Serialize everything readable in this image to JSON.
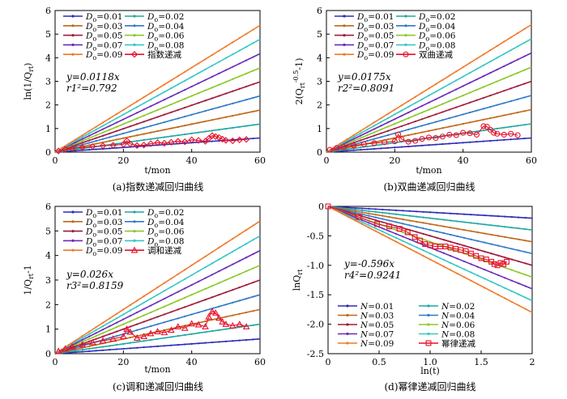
{
  "chart_data": [
    {
      "type": "line",
      "caption": "(a)指数递减回归曲线",
      "xlabel": "t/mon",
      "ylabel": "ln(1/Q_rt)",
      "xlim": [
        0,
        60
      ],
      "ylim": [
        0,
        6
      ],
      "xticks": [
        "0",
        "20",
        "40",
        "60"
      ],
      "yticks": [
        "0",
        "1",
        "2",
        "3",
        "4",
        "5",
        "6"
      ],
      "equation": "y=0.0118x",
      "r2_label": "r1²=0.792",
      "series": [
        {
          "name": "Do=0.01",
          "x": [
            0,
            60
          ],
          "y": [
            0,
            0.6
          ],
          "color": "#2b2bb8"
        },
        {
          "name": "Do=0.02",
          "x": [
            0,
            60
          ],
          "y": [
            0,
            1.19
          ],
          "color": "#1fa7a2"
        },
        {
          "name": "Do=0.03",
          "x": [
            0,
            60
          ],
          "y": [
            0,
            1.78
          ],
          "color": "#c06818"
        },
        {
          "name": "Do=0.04",
          "x": [
            0,
            60
          ],
          "y": [
            0,
            2.38
          ],
          "color": "#2f78c9"
        },
        {
          "name": "Do=0.05",
          "x": [
            0,
            60
          ],
          "y": [
            0,
            2.98
          ],
          "color": "#a01a3c"
        },
        {
          "name": "Do=0.06",
          "x": [
            0,
            60
          ],
          "y": [
            0,
            3.57
          ],
          "color": "#8bc82a"
        },
        {
          "name": "Do=0.07",
          "x": [
            0,
            60
          ],
          "y": [
            0,
            4.17
          ],
          "color": "#6a2cb8"
        },
        {
          "name": "Do=0.08",
          "x": [
            0,
            60
          ],
          "y": [
            0,
            4.78
          ],
          "color": "#38c6c6"
        },
        {
          "name": "Do=0.09",
          "x": [
            0,
            60
          ],
          "y": [
            0,
            5.37
          ],
          "color": "#f07a2a"
        },
        {
          "name": "指数递减",
          "marker": "diamond",
          "color": "#e8102a",
          "x": [
            1,
            3,
            5,
            8,
            11,
            14,
            17,
            20,
            21,
            22,
            24,
            26,
            28,
            30,
            32,
            34,
            36,
            38,
            40,
            42,
            44,
            45,
            46,
            47,
            48,
            49,
            50,
            52,
            54,
            56
          ],
          "y": [
            0.05,
            0.12,
            0.16,
            0.2,
            0.24,
            0.27,
            0.29,
            0.33,
            0.48,
            0.35,
            0.28,
            0.3,
            0.36,
            0.4,
            0.38,
            0.42,
            0.46,
            0.44,
            0.52,
            0.5,
            0.46,
            0.58,
            0.7,
            0.66,
            0.62,
            0.55,
            0.5,
            0.48,
            0.52,
            0.54
          ]
        }
      ]
    },
    {
      "type": "line",
      "caption": "(b)双曲递减回归曲线",
      "xlabel": "t/mon",
      "ylabel": "2(Q_rt^-0.5-1)",
      "xlim": [
        0,
        60
      ],
      "ylim": [
        0,
        6
      ],
      "xticks": [
        "0",
        "20",
        "40",
        "60"
      ],
      "yticks": [
        "0",
        "1",
        "2",
        "3",
        "4",
        "5",
        "6"
      ],
      "equation": "y=0.0175x",
      "r2_label": "r2²=0.8091",
      "series": [
        {
          "name": "Do=0.01",
          "x": [
            0,
            60
          ],
          "y": [
            0,
            0.6
          ],
          "color": "#2b2bb8"
        },
        {
          "name": "Do=0.02",
          "x": [
            0,
            60
          ],
          "y": [
            0,
            1.2
          ],
          "color": "#1fa7a2"
        },
        {
          "name": "Do=0.03",
          "x": [
            0,
            60
          ],
          "y": [
            0,
            1.8
          ],
          "color": "#c06818"
        },
        {
          "name": "Do=0.04",
          "x": [
            0,
            60
          ],
          "y": [
            0,
            2.4
          ],
          "color": "#2f78c9"
        },
        {
          "name": "Do=0.05",
          "x": [
            0,
            60
          ],
          "y": [
            0,
            3.0
          ],
          "color": "#a01a3c"
        },
        {
          "name": "Do=0.06",
          "x": [
            0,
            60
          ],
          "y": [
            0,
            3.6
          ],
          "color": "#8bc82a"
        },
        {
          "name": "Do=0.07",
          "x": [
            0,
            60
          ],
          "y": [
            0,
            4.2
          ],
          "color": "#6a2cb8"
        },
        {
          "name": "Do=0.08",
          "x": [
            0,
            60
          ],
          "y": [
            0,
            4.8
          ],
          "color": "#38c6c6"
        },
        {
          "name": "Do=0.09",
          "x": [
            0,
            60
          ],
          "y": [
            0,
            5.4
          ],
          "color": "#f07a2a"
        },
        {
          "name": "双曲递减",
          "marker": "circle",
          "color": "#e8102a",
          "x": [
            1,
            3,
            5,
            8,
            11,
            14,
            17,
            20,
            21,
            22,
            24,
            26,
            28,
            30,
            32,
            34,
            36,
            38,
            40,
            42,
            44,
            46,
            47,
            48,
            49,
            50,
            52,
            54,
            56
          ],
          "y": [
            0.1,
            0.18,
            0.22,
            0.28,
            0.34,
            0.38,
            0.42,
            0.46,
            0.75,
            0.55,
            0.44,
            0.48,
            0.56,
            0.62,
            0.6,
            0.66,
            0.74,
            0.72,
            0.82,
            0.8,
            0.74,
            1.1,
            1.08,
            0.95,
            0.82,
            0.78,
            0.74,
            0.78,
            0.72
          ]
        }
      ]
    },
    {
      "type": "line",
      "caption": "(c)调和递减回归曲线",
      "xlabel": "t/mon",
      "ylabel": "1/Q_rt-1",
      "xlim": [
        0,
        60
      ],
      "ylim": [
        0,
        6
      ],
      "xticks": [
        "0",
        "20",
        "40",
        "60"
      ],
      "yticks": [
        "0",
        "1",
        "2",
        "3",
        "4",
        "5",
        "6"
      ],
      "equation": "y=0.026x",
      "r2_label": "r3²=0.8159",
      "series": [
        {
          "name": "Do=0.01",
          "x": [
            0,
            60
          ],
          "y": [
            0,
            0.6
          ],
          "color": "#2b2bb8"
        },
        {
          "name": "Do=0.02",
          "x": [
            0,
            60
          ],
          "y": [
            0,
            1.2
          ],
          "color": "#1fa7a2"
        },
        {
          "name": "Do=0.03",
          "x": [
            0,
            60
          ],
          "y": [
            0,
            1.8
          ],
          "color": "#c06818"
        },
        {
          "name": "Do=0.04",
          "x": [
            0,
            60
          ],
          "y": [
            0,
            2.4
          ],
          "color": "#2f78c9"
        },
        {
          "name": "Do=0.05",
          "x": [
            0,
            60
          ],
          "y": [
            0,
            3.0
          ],
          "color": "#a01a3c"
        },
        {
          "name": "Do=0.06",
          "x": [
            0,
            60
          ],
          "y": [
            0,
            3.6
          ],
          "color": "#8bc82a"
        },
        {
          "name": "Do=0.07",
          "x": [
            0,
            60
          ],
          "y": [
            0,
            4.2
          ],
          "color": "#6a2cb8"
        },
        {
          "name": "Do=0.08",
          "x": [
            0,
            60
          ],
          "y": [
            0,
            4.8
          ],
          "color": "#38c6c6"
        },
        {
          "name": "Do=0.09",
          "x": [
            0,
            60
          ],
          "y": [
            0,
            5.4
          ],
          "color": "#f07a2a"
        },
        {
          "name": "调和递减",
          "marker": "triangle",
          "color": "#e8102a",
          "x": [
            1,
            3,
            5,
            8,
            11,
            14,
            17,
            20,
            21,
            22,
            24,
            26,
            28,
            30,
            32,
            34,
            36,
            38,
            40,
            42,
            44,
            45,
            46,
            47,
            48,
            49,
            50,
            52,
            54,
            56
          ],
          "y": [
            0.1,
            0.2,
            0.28,
            0.36,
            0.46,
            0.52,
            0.6,
            0.7,
            1.0,
            0.88,
            0.64,
            0.7,
            0.82,
            0.9,
            0.86,
            0.96,
            1.1,
            1.04,
            1.22,
            1.18,
            1.1,
            1.5,
            1.72,
            1.66,
            1.45,
            1.3,
            1.2,
            1.14,
            1.2,
            1.1
          ]
        }
      ]
    },
    {
      "type": "line",
      "caption": "(d)幂律递减回归曲线",
      "xlabel": "ln(t)",
      "ylabel": "lnQ_rt",
      "xlim": [
        0,
        2
      ],
      "ylim": [
        -2.5,
        0
      ],
      "xticks": [
        "0",
        "0.5",
        "1.0",
        "1.5",
        "2"
      ],
      "yticks": [
        "0",
        "-0.5",
        "-1.0",
        "-1.5",
        "-2.0",
        "-2.5"
      ],
      "equation": "y=-0.596x",
      "r2_label": "r4²=0.9241",
      "series": [
        {
          "name": "N=0.01",
          "x": [
            0,
            2
          ],
          "y": [
            0,
            -0.2
          ],
          "color": "#2b2bb8"
        },
        {
          "name": "N=0.02",
          "x": [
            0,
            2
          ],
          "y": [
            0,
            -0.4
          ],
          "color": "#1fa7a2"
        },
        {
          "name": "N=0.03",
          "x": [
            0,
            2
          ],
          "y": [
            0,
            -0.6
          ],
          "color": "#c06818"
        },
        {
          "name": "N=0.04",
          "x": [
            0,
            2
          ],
          "y": [
            0,
            -0.8
          ],
          "color": "#2f78c9"
        },
        {
          "name": "N=0.05",
          "x": [
            0,
            2
          ],
          "y": [
            0,
            -1.0
          ],
          "color": "#a01a3c"
        },
        {
          "name": "N=0.06",
          "x": [
            0,
            2
          ],
          "y": [
            0,
            -1.2
          ],
          "color": "#8bc82a"
        },
        {
          "name": "N=0.07",
          "x": [
            0,
            2
          ],
          "y": [
            0,
            -1.4
          ],
          "color": "#6a2cb8"
        },
        {
          "name": "N=0.08",
          "x": [
            0,
            2
          ],
          "y": [
            0,
            -1.6
          ],
          "color": "#38c6c6"
        },
        {
          "name": "N=0.09",
          "x": [
            0,
            2
          ],
          "y": [
            0,
            -1.8
          ],
          "color": "#f07a2a"
        },
        {
          "name": "幂律递减",
          "marker": "square",
          "color": "#e8102a",
          "x": [
            0.0,
            0.3,
            0.48,
            0.6,
            0.7,
            0.78,
            0.85,
            0.9,
            0.95,
            1.0,
            1.05,
            1.1,
            1.15,
            1.2,
            1.25,
            1.3,
            1.35,
            1.4,
            1.45,
            1.5,
            1.55,
            1.6,
            1.63,
            1.66,
            1.69,
            1.72,
            1.75
          ],
          "y": [
            0.0,
            -0.18,
            -0.3,
            -0.34,
            -0.38,
            -0.44,
            -0.52,
            -0.58,
            -0.64,
            -0.66,
            -0.68,
            -0.68,
            -0.68,
            -0.7,
            -0.72,
            -0.74,
            -0.76,
            -0.8,
            -0.84,
            -0.88,
            -0.9,
            -0.94,
            -0.98,
            -1.0,
            -0.96,
            -0.98,
            -0.94
          ]
        }
      ]
    }
  ]
}
